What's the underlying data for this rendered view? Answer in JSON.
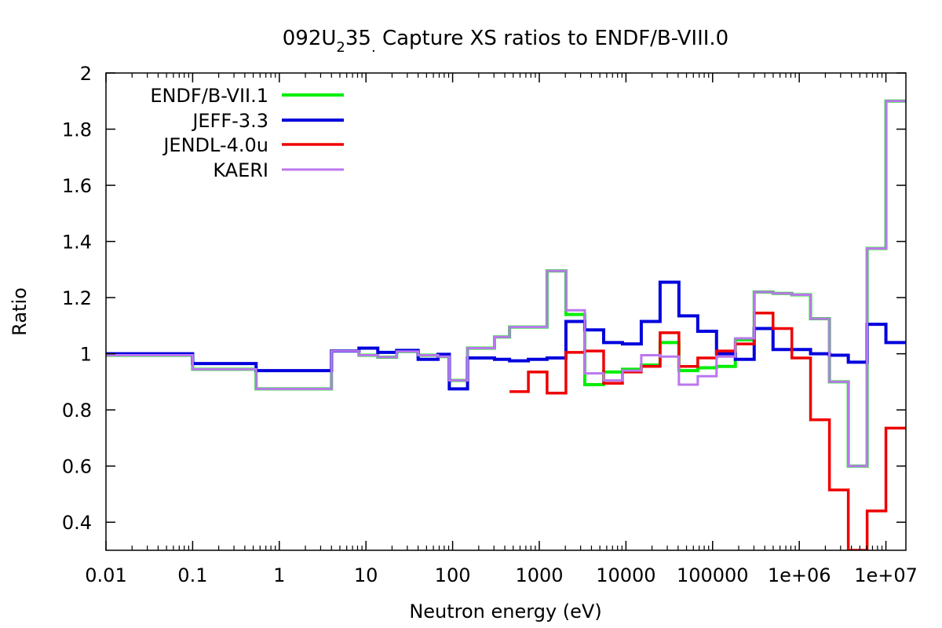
{
  "chart_data": {
    "type": "line",
    "title_parts": {
      "a": "092U",
      "sub": "2",
      "b": "35",
      "sub2": ".",
      "c": " Capture XS ratios to ENDF/B-VIII.0"
    },
    "xlabel": "Neutron energy (eV)",
    "ylabel": "Ratio",
    "xscale": "log",
    "xlim": [
      0.01,
      17000000
    ],
    "ylim": [
      0.3,
      2.0
    ],
    "grid": false,
    "legend_position": "top-left",
    "x_ticks": [
      {
        "value": 0.01,
        "label": "0.01"
      },
      {
        "value": 0.1,
        "label": "0.1"
      },
      {
        "value": 1,
        "label": "1"
      },
      {
        "value": 10,
        "label": "10"
      },
      {
        "value": 100,
        "label": "100"
      },
      {
        "value": 1000,
        "label": "1000"
      },
      {
        "value": 10000,
        "label": "10000"
      },
      {
        "value": 100000,
        "label": "100000"
      },
      {
        "value": 1000000,
        "label": "1e+06"
      },
      {
        "value": 10000000,
        "label": "1e+07"
      }
    ],
    "y_ticks": [
      {
        "value": 0.4,
        "label": "0.4"
      },
      {
        "value": 0.6,
        "label": "0.6"
      },
      {
        "value": 0.8,
        "label": "0.8"
      },
      {
        "value": 1.0,
        "label": "1"
      },
      {
        "value": 1.2,
        "label": "1.2"
      },
      {
        "value": 1.4,
        "label": "1.4"
      },
      {
        "value": 1.6,
        "label": "1.6"
      },
      {
        "value": 1.8,
        "label": "1.8"
      },
      {
        "value": 2.0,
        "label": "2"
      }
    ],
    "bin_edges": [
      0.01,
      0.1,
      0.54,
      4,
      8.3,
      13.7,
      22.6,
      40,
      67.9,
      91.6,
      148.7,
      304.3,
      454,
      748.5,
      1230,
      2030,
      3350,
      5530,
      9120,
      15030,
      24780,
      40850,
      67400,
      111000,
      183000,
      302000,
      498000,
      821000,
      1350000,
      2230000,
      3680000,
      6070000,
      10000000,
      17000000
    ],
    "series": [
      {
        "name": "ENDF/B-VII.1",
        "color": "#00ee00",
        "values": [
          0.995,
          0.945,
          0.875,
          1.01,
          0.995,
          0.988,
          1.008,
          0.995,
          0.99,
          0.905,
          1.02,
          1.06,
          1.095,
          1.095,
          1.295,
          1.14,
          0.89,
          0.935,
          0.945,
          0.96,
          1.04,
          0.94,
          0.95,
          0.955,
          1.05,
          1.22,
          1.215,
          1.21,
          1.125,
          0.9,
          0.6,
          1.375,
          1.9
        ]
      },
      {
        "name": "JEFF-3.3",
        "color": "#0000dd",
        "values": [
          1.0,
          0.965,
          0.94,
          1.01,
          1.02,
          1.005,
          1.012,
          0.98,
          0.998,
          0.875,
          0.985,
          0.98,
          0.975,
          0.98,
          0.985,
          1.115,
          1.085,
          1.04,
          1.035,
          1.115,
          1.255,
          1.135,
          1.08,
          1.0,
          0.98,
          1.09,
          1.015,
          1.015,
          1.0,
          0.995,
          0.97,
          1.105,
          1.04
        ]
      },
      {
        "name": "JENDL-4.0u",
        "color": "#ee0000",
        "values": [
          null,
          null,
          null,
          null,
          null,
          null,
          null,
          null,
          null,
          null,
          null,
          null,
          0.865,
          0.935,
          0.86,
          1.005,
          1.01,
          0.895,
          0.935,
          0.955,
          1.075,
          0.955,
          0.985,
          1.01,
          1.035,
          1.145,
          1.09,
          0.985,
          0.765,
          0.515,
          0.3,
          0.44,
          0.735
        ]
      },
      {
        "name": "KAERI",
        "color": "#bb77ee",
        "values": [
          0.995,
          0.945,
          0.875,
          1.01,
          0.995,
          0.988,
          1.008,
          0.995,
          0.99,
          0.905,
          1.02,
          1.06,
          1.095,
          1.095,
          1.295,
          1.155,
          0.93,
          0.905,
          0.94,
          0.995,
          0.99,
          0.89,
          0.92,
          0.99,
          1.055,
          1.22,
          1.215,
          1.21,
          1.125,
          0.9,
          0.6,
          1.375,
          1.9
        ]
      }
    ]
  }
}
